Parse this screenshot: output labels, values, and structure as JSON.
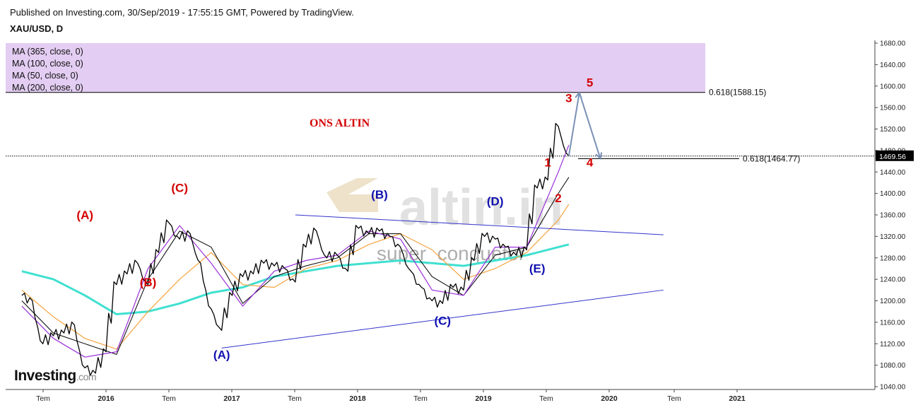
{
  "header": {
    "published": "Published on Investing.com, 30/Sep/2019 - 17:55:15 GMT, Powered by TradingView.",
    "symbol": "XAU/USD, D"
  },
  "legend": {
    "ma_items": [
      "MA (365, close, 0)",
      "MA (100, close, 0)",
      "MA (50, close, 0)",
      "MA (200, close, 0)"
    ]
  },
  "logo": {
    "text": "Investing",
    "suffix": ".com"
  },
  "chart_data": {
    "type": "line",
    "title": "ONS ALTIN",
    "watermark_main": "altin.in",
    "watermark_sub": "super_conquetor",
    "ylim": [
      1040,
      1680
    ],
    "y_ticks": [
      1040,
      1080,
      1120,
      1160,
      1200,
      1240,
      1280,
      1320,
      1360,
      1400,
      1440,
      1480,
      1520,
      1560,
      1600,
      1640,
      1680
    ],
    "x_ticks": [
      "Tem",
      "2016",
      "Tem",
      "2017",
      "Tem",
      "2018",
      "Tem",
      "2019",
      "Tem",
      "2020",
      "Tem",
      "2021"
    ],
    "last_price_label": "1469.56",
    "colors": {
      "price": "#000000",
      "ma365": "#40e0d0",
      "ma100": "#f5a340",
      "ma50": "#000000",
      "ma200": "#9b30d9",
      "trendline": "#3333cc",
      "arrow": "#7a90b5",
      "red_label": "#d40000",
      "blue_label": "#1010b0",
      "zone": "#e3cdf2"
    },
    "price_series": {
      "name": "XAU/USD",
      "x": [
        "2015-05",
        "2015-06",
        "2015-07",
        "2015-08",
        "2015-09",
        "2015-10",
        "2015-11",
        "2015-12",
        "2016-01",
        "2016-02",
        "2016-03",
        "2016-04",
        "2016-05",
        "2016-06",
        "2016-07",
        "2016-08",
        "2016-09",
        "2016-10",
        "2016-11",
        "2016-12",
        "2017-01",
        "2017-02",
        "2017-03",
        "2017-04",
        "2017-05",
        "2017-06",
        "2017-07",
        "2017-08",
        "2017-09",
        "2017-10",
        "2017-11",
        "2017-12",
        "2018-01",
        "2018-02",
        "2018-03",
        "2018-04",
        "2018-05",
        "2018-06",
        "2018-07",
        "2018-08",
        "2018-09",
        "2018-10",
        "2018-11",
        "2018-12",
        "2019-01",
        "2019-02",
        "2019-03",
        "2019-04",
        "2019-05",
        "2019-06",
        "2019-07",
        "2019-08",
        "2019-09"
      ],
      "y": [
        1210,
        1200,
        1120,
        1135,
        1140,
        1155,
        1075,
        1065,
        1105,
        1230,
        1250,
        1270,
        1230,
        1290,
        1345,
        1315,
        1325,
        1270,
        1185,
        1145,
        1210,
        1245,
        1250,
        1270,
        1265,
        1260,
        1235,
        1300,
        1330,
        1280,
        1285,
        1255,
        1335,
        1325,
        1330,
        1320,
        1300,
        1255,
        1225,
        1200,
        1195,
        1225,
        1220,
        1275,
        1320,
        1315,
        1300,
        1285,
        1295,
        1410,
        1425,
        1525,
        1470
      ]
    },
    "moving_averages": [
      {
        "name": "MA (365, close, 0)",
        "x": [
          "2015-05",
          "2015-08",
          "2015-11",
          "2016-02",
          "2016-05",
          "2016-08",
          "2016-11",
          "2017-02",
          "2017-05",
          "2017-08",
          "2017-11",
          "2018-02",
          "2018-05",
          "2018-08",
          "2018-11",
          "2019-02",
          "2019-05",
          "2019-08",
          "2019-09"
        ],
        "y": [
          1255,
          1240,
          1210,
          1175,
          1180,
          1195,
          1215,
          1225,
          1245,
          1255,
          1265,
          1270,
          1275,
          1270,
          1265,
          1275,
          1285,
          1300,
          1305
        ]
      },
      {
        "name": "MA (100, close, 0)",
        "x": [
          "2015-05",
          "2015-08",
          "2015-11",
          "2016-02",
          "2016-05",
          "2016-08",
          "2016-11",
          "2017-02",
          "2017-05",
          "2017-08",
          "2017-11",
          "2018-02",
          "2018-05",
          "2018-08",
          "2018-11",
          "2019-02",
          "2019-05",
          "2019-08",
          "2019-09"
        ],
        "y": [
          1220,
          1170,
          1130,
          1110,
          1180,
          1240,
          1290,
          1230,
          1225,
          1260,
          1275,
          1305,
          1325,
          1295,
          1240,
          1260,
          1290,
          1350,
          1380
        ]
      },
      {
        "name": "MA (50, close, 0)",
        "x": [
          "2015-05",
          "2015-08",
          "2015-11",
          "2016-02",
          "2016-05",
          "2016-08",
          "2016-11",
          "2017-02",
          "2017-05",
          "2017-08",
          "2017-11",
          "2018-02",
          "2018-05",
          "2018-08",
          "2018-11",
          "2019-02",
          "2019-05",
          "2019-08",
          "2019-09"
        ],
        "y": [
          1200,
          1140,
          1120,
          1100,
          1240,
          1330,
          1300,
          1195,
          1245,
          1265,
          1280,
          1325,
          1325,
          1245,
          1210,
          1285,
          1300,
          1400,
          1430
        ]
      },
      {
        "name": "MA (200, close, 0)",
        "x": [
          "2015-05",
          "2015-08",
          "2015-11",
          "2016-02",
          "2016-05",
          "2016-08",
          "2016-11",
          "2017-02",
          "2017-05",
          "2017-08",
          "2017-11",
          "2018-02",
          "2018-05",
          "2018-08",
          "2018-11",
          "2019-02",
          "2019-05",
          "2019-08",
          "2019-09"
        ],
        "y": [
          1190,
          1130,
          1095,
          1105,
          1260,
          1340,
          1270,
          1190,
          1255,
          1275,
          1285,
          1330,
          1315,
          1220,
          1210,
          1300,
          1300,
          1440,
          1490
        ]
      }
    ],
    "fib_levels": [
      {
        "label": "0.618(1588.15)",
        "y": 1588.15
      },
      {
        "label": "0.618(1464.77)",
        "y": 1464.77
      }
    ],
    "zone": {
      "from": 1588,
      "to": 1680
    },
    "trendlines": [
      {
        "x": [
          "2016-12",
          "2020-06"
        ],
        "y": [
          1112,
          1220
        ]
      },
      {
        "x": [
          "2017-07",
          "2020-06"
        ],
        "y": [
          1360,
          1323
        ]
      }
    ],
    "projection": {
      "x": [
        "2019-09",
        "2019-10",
        "2019-12"
      ],
      "y": [
        1470,
        1588,
        1465
      ]
    },
    "wave_labels": [
      {
        "text": "(A)",
        "x": "2015-11",
        "y": 1352,
        "color": "red"
      },
      {
        "text": "(B)",
        "x": "2016-05",
        "y": 1227,
        "color": "red"
      },
      {
        "text": "(C)",
        "x": "2016-08",
        "y": 1403,
        "color": "red"
      },
      {
        "text": "(A)",
        "x": "2016-12",
        "y": 1092,
        "color": "blue"
      },
      {
        "text": "(B)",
        "x": "2018-03",
        "y": 1390,
        "color": "blue"
      },
      {
        "text": "(C)",
        "x": "2018-09",
        "y": 1155,
        "color": "blue"
      },
      {
        "text": "(D)",
        "x": "2019-02",
        "y": 1378,
        "color": "blue"
      },
      {
        "text": "(E)",
        "x": "2019-06",
        "y": 1253,
        "color": "blue"
      },
      {
        "text": "1",
        "x": "2019-07",
        "y": 1450,
        "color": "red"
      },
      {
        "text": "2",
        "x": "2019-08",
        "y": 1384,
        "color": "red"
      },
      {
        "text": "3",
        "x": "2019-09",
        "y": 1570,
        "color": "red"
      },
      {
        "text": "4",
        "x": "2019-11",
        "y": 1450,
        "color": "red"
      },
      {
        "text": "5",
        "x": "2019-11",
        "y": 1599,
        "color": "red"
      }
    ]
  }
}
